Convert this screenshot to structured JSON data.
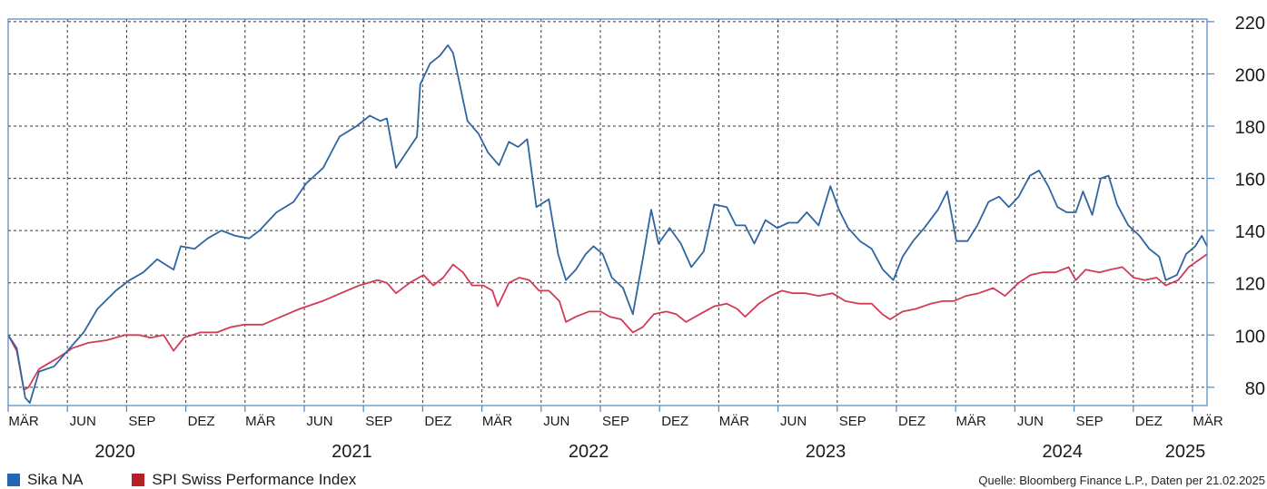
{
  "chart_data": {
    "type": "line",
    "title": "",
    "xlabel": "",
    "ylabel": "",
    "ylim": [
      73,
      221
    ],
    "y_ticks": [
      80,
      100,
      120,
      140,
      160,
      180,
      200,
      220
    ],
    "grid": true,
    "x_month_ticks": [
      "MÄR",
      "JUN",
      "SEP",
      "DEZ",
      "MÄR",
      "JUN",
      "SEP",
      "DEZ",
      "MÄR",
      "JUN",
      "SEP",
      "DEZ",
      "MÄR",
      "JUN",
      "SEP",
      "DEZ",
      "MÄR",
      "JUN",
      "SEP",
      "DEZ",
      "MÄR"
    ],
    "x_years": [
      "2020",
      "2021",
      "2022",
      "2023",
      "2024",
      "2025"
    ],
    "x_range": [
      "2020-02-21",
      "2025-02-21"
    ],
    "series": [
      {
        "name": "Sika NA",
        "color": "#2f65a0",
        "points": [
          [
            "2020-02-21",
            100
          ],
          [
            "2020-03-05",
            95
          ],
          [
            "2020-03-18",
            76
          ],
          [
            "2020-03-25",
            74
          ],
          [
            "2020-04-08",
            86
          ],
          [
            "2020-05-01",
            88
          ],
          [
            "2020-05-25",
            95
          ],
          [
            "2020-06-15",
            101
          ],
          [
            "2020-07-06",
            110
          ],
          [
            "2020-08-03",
            117
          ],
          [
            "2020-08-24",
            121
          ],
          [
            "2020-09-14",
            124
          ],
          [
            "2020-10-05",
            129
          ],
          [
            "2020-10-30",
            125
          ],
          [
            "2020-11-10",
            134
          ],
          [
            "2020-12-01",
            133
          ],
          [
            "2020-12-21",
            137
          ],
          [
            "2021-01-11",
            140
          ],
          [
            "2021-02-01",
            138
          ],
          [
            "2021-02-22",
            137
          ],
          [
            "2021-03-10",
            140
          ],
          [
            "2021-04-05",
            147
          ],
          [
            "2021-05-01",
            151
          ],
          [
            "2021-05-20",
            158
          ],
          [
            "2021-06-15",
            164
          ],
          [
            "2021-07-10",
            176
          ],
          [
            "2021-08-05",
            180
          ],
          [
            "2021-08-25",
            184
          ],
          [
            "2021-09-10",
            182
          ],
          [
            "2021-09-20",
            183
          ],
          [
            "2021-10-04",
            164
          ],
          [
            "2021-10-20",
            170
          ],
          [
            "2021-11-05",
            176
          ],
          [
            "2021-11-10",
            196
          ],
          [
            "2021-11-25",
            204
          ],
          [
            "2021-12-10",
            207
          ],
          [
            "2021-12-22",
            211
          ],
          [
            "2021-12-30",
            208
          ],
          [
            "2022-01-10",
            195
          ],
          [
            "2022-01-21",
            182
          ],
          [
            "2022-02-07",
            177
          ],
          [
            "2022-02-21",
            170
          ],
          [
            "2022-03-10",
            165
          ],
          [
            "2022-03-25",
            174
          ],
          [
            "2022-04-08",
            172
          ],
          [
            "2022-04-22",
            175
          ],
          [
            "2022-05-06",
            149
          ],
          [
            "2022-05-25",
            152
          ],
          [
            "2022-06-08",
            131
          ],
          [
            "2022-06-20",
            121
          ],
          [
            "2022-07-05",
            125
          ],
          [
            "2022-07-20",
            131
          ],
          [
            "2022-08-01",
            134
          ],
          [
            "2022-08-15",
            131
          ],
          [
            "2022-08-29",
            122
          ],
          [
            "2022-09-15",
            118
          ],
          [
            "2022-09-30",
            108
          ],
          [
            "2022-10-15",
            129
          ],
          [
            "2022-10-28",
            148
          ],
          [
            "2022-11-08",
            135
          ],
          [
            "2022-11-25",
            141
          ],
          [
            "2022-12-12",
            135
          ],
          [
            "2022-12-28",
            126
          ],
          [
            "2023-01-16",
            132
          ],
          [
            "2023-02-01",
            150
          ],
          [
            "2023-02-20",
            149
          ],
          [
            "2023-03-06",
            142
          ],
          [
            "2023-03-20",
            142
          ],
          [
            "2023-04-03",
            135
          ],
          [
            "2023-04-20",
            144
          ],
          [
            "2023-05-08",
            141
          ],
          [
            "2023-05-25",
            143
          ],
          [
            "2023-06-08",
            143
          ],
          [
            "2023-06-22",
            147
          ],
          [
            "2023-07-10",
            142
          ],
          [
            "2023-07-28",
            157
          ],
          [
            "2023-08-10",
            148
          ],
          [
            "2023-08-24",
            141
          ],
          [
            "2023-09-11",
            136
          ],
          [
            "2023-09-29",
            133
          ],
          [
            "2023-10-16",
            125
          ],
          [
            "2023-11-01",
            121
          ],
          [
            "2023-11-15",
            130
          ],
          [
            "2023-12-01",
            136
          ],
          [
            "2023-12-18",
            141
          ],
          [
            "2024-01-08",
            148
          ],
          [
            "2024-01-22",
            155
          ],
          [
            "2024-02-05",
            136
          ],
          [
            "2024-02-22",
            136
          ],
          [
            "2024-03-08",
            142
          ],
          [
            "2024-03-25",
            151
          ],
          [
            "2024-04-10",
            153
          ],
          [
            "2024-04-25",
            149
          ],
          [
            "2024-05-10",
            153
          ],
          [
            "2024-05-27",
            161
          ],
          [
            "2024-06-10",
            163
          ],
          [
            "2024-06-24",
            157
          ],
          [
            "2024-07-08",
            149
          ],
          [
            "2024-07-22",
            147
          ],
          [
            "2024-08-05",
            147
          ],
          [
            "2024-08-16",
            155
          ],
          [
            "2024-08-30",
            146
          ],
          [
            "2024-09-12",
            160
          ],
          [
            "2024-09-24",
            161
          ],
          [
            "2024-10-07",
            150
          ],
          [
            "2024-10-24",
            142
          ],
          [
            "2024-11-10",
            138
          ],
          [
            "2024-11-25",
            133
          ],
          [
            "2024-12-10",
            130
          ],
          [
            "2024-12-20",
            121
          ],
          [
            "2025-01-06",
            123
          ],
          [
            "2025-01-20",
            131
          ],
          [
            "2025-02-03",
            134
          ],
          [
            "2025-02-13",
            138
          ],
          [
            "2025-02-21",
            134
          ]
        ]
      },
      {
        "name": "SPI Swiss Performance Index",
        "color": "#d23a55",
        "points": [
          [
            "2020-02-21",
            100
          ],
          [
            "2020-03-05",
            94
          ],
          [
            "2020-03-16",
            79
          ],
          [
            "2020-03-23",
            80
          ],
          [
            "2020-04-08",
            87
          ],
          [
            "2020-05-05",
            91
          ],
          [
            "2020-05-29",
            95
          ],
          [
            "2020-06-22",
            97
          ],
          [
            "2020-07-20",
            98
          ],
          [
            "2020-08-17",
            100
          ],
          [
            "2020-09-07",
            100
          ],
          [
            "2020-09-25",
            99
          ],
          [
            "2020-10-15",
            100
          ],
          [
            "2020-10-30",
            94
          ],
          [
            "2020-11-15",
            99
          ],
          [
            "2020-12-10",
            101
          ],
          [
            "2021-01-04",
            101
          ],
          [
            "2021-01-25",
            103
          ],
          [
            "2021-02-15",
            104
          ],
          [
            "2021-03-15",
            104
          ],
          [
            "2021-04-12",
            107
          ],
          [
            "2021-05-10",
            110
          ],
          [
            "2021-06-14",
            113
          ],
          [
            "2021-07-12",
            116
          ],
          [
            "2021-08-09",
            119
          ],
          [
            "2021-09-06",
            121
          ],
          [
            "2021-09-20",
            120
          ],
          [
            "2021-10-04",
            116
          ],
          [
            "2021-10-25",
            120
          ],
          [
            "2021-11-15",
            123
          ],
          [
            "2021-11-30",
            119
          ],
          [
            "2021-12-15",
            122
          ],
          [
            "2021-12-30",
            127
          ],
          [
            "2022-01-14",
            124
          ],
          [
            "2022-01-28",
            119
          ],
          [
            "2022-02-14",
            119
          ],
          [
            "2022-02-28",
            117
          ],
          [
            "2022-03-08",
            111
          ],
          [
            "2022-03-25",
            120
          ],
          [
            "2022-04-10",
            122
          ],
          [
            "2022-04-25",
            121
          ],
          [
            "2022-05-10",
            117
          ],
          [
            "2022-05-25",
            117
          ],
          [
            "2022-06-10",
            113
          ],
          [
            "2022-06-20",
            105
          ],
          [
            "2022-07-05",
            107
          ],
          [
            "2022-07-25",
            109
          ],
          [
            "2022-08-12",
            109
          ],
          [
            "2022-08-26",
            107
          ],
          [
            "2022-09-12",
            106
          ],
          [
            "2022-09-30",
            101
          ],
          [
            "2022-10-15",
            103
          ],
          [
            "2022-11-01",
            108
          ],
          [
            "2022-11-20",
            109
          ],
          [
            "2022-12-05",
            108
          ],
          [
            "2022-12-20",
            105
          ],
          [
            "2023-01-10",
            108
          ],
          [
            "2023-02-01",
            111
          ],
          [
            "2023-02-20",
            112
          ],
          [
            "2023-03-08",
            110
          ],
          [
            "2023-03-20",
            107
          ],
          [
            "2023-04-10",
            112
          ],
          [
            "2023-04-28",
            115
          ],
          [
            "2023-05-15",
            117
          ],
          [
            "2023-06-01",
            116
          ],
          [
            "2023-06-20",
            116
          ],
          [
            "2023-07-10",
            115
          ],
          [
            "2023-07-31",
            116
          ],
          [
            "2023-08-20",
            113
          ],
          [
            "2023-09-10",
            112
          ],
          [
            "2023-09-29",
            112
          ],
          [
            "2023-10-15",
            108
          ],
          [
            "2023-10-27",
            106
          ],
          [
            "2023-11-15",
            109
          ],
          [
            "2023-12-05",
            110
          ],
          [
            "2023-12-28",
            112
          ],
          [
            "2024-01-15",
            113
          ],
          [
            "2024-02-01",
            113
          ],
          [
            "2024-02-20",
            115
          ],
          [
            "2024-03-10",
            116
          ],
          [
            "2024-04-01",
            118
          ],
          [
            "2024-04-19",
            115
          ],
          [
            "2024-05-10",
            120
          ],
          [
            "2024-05-28",
            123
          ],
          [
            "2024-06-15",
            124
          ],
          [
            "2024-07-05",
            124
          ],
          [
            "2024-07-25",
            126
          ],
          [
            "2024-08-05",
            121
          ],
          [
            "2024-08-20",
            125
          ],
          [
            "2024-09-10",
            124
          ],
          [
            "2024-09-26",
            125
          ],
          [
            "2024-10-15",
            126
          ],
          [
            "2024-11-01",
            122
          ],
          [
            "2024-11-18",
            121
          ],
          [
            "2024-12-06",
            122
          ],
          [
            "2024-12-20",
            119
          ],
          [
            "2025-01-08",
            121
          ],
          [
            "2025-01-24",
            126
          ],
          [
            "2025-02-10",
            129
          ],
          [
            "2025-02-21",
            131
          ]
        ]
      }
    ],
    "legend": "bottom-left",
    "source_note": "Quelle: Bloomberg Finance L.P., Daten per 21.02.2025"
  },
  "legend": {
    "sika": {
      "label": "Sika NA",
      "color": "#2167b5"
    },
    "spi": {
      "label": "SPI Swiss Performance Index",
      "color": "#b52028"
    }
  },
  "source": "Quelle: Bloomberg Finance L.P., Daten per 21.02.2025"
}
